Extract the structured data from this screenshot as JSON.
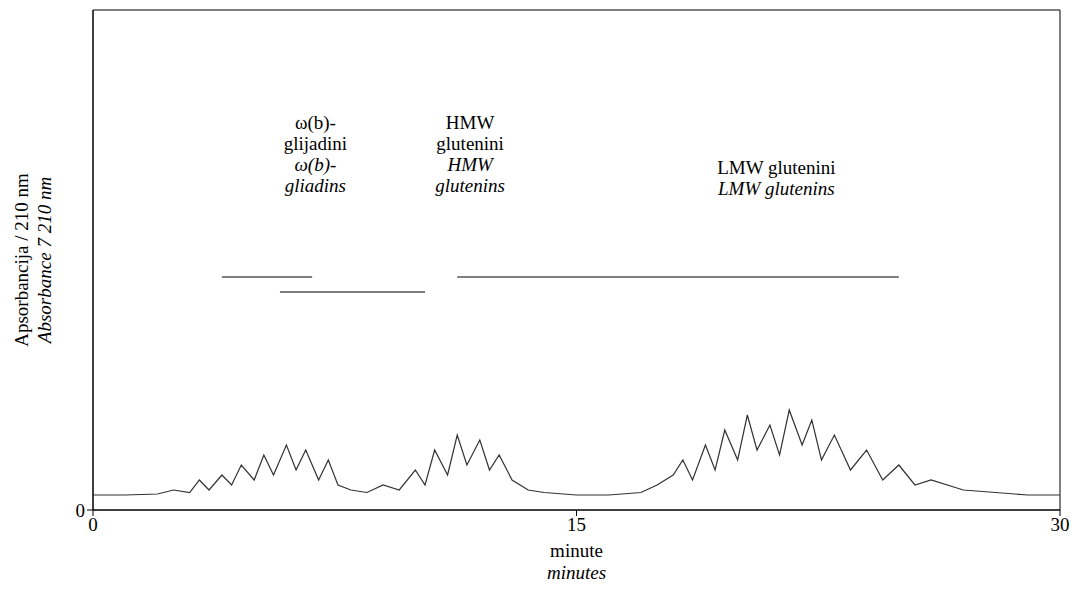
{
  "chart_data": {
    "type": "line",
    "x_label": [
      "minute",
      "minutes"
    ],
    "y_label": [
      "Apsorbancija / 210 nm",
      "Absorbance 7 210 nm"
    ],
    "x": [
      0,
      1,
      2,
      2.5,
      3,
      3.3,
      3.6,
      4,
      4.3,
      4.6,
      5,
      5.3,
      5.6,
      6,
      6.3,
      6.6,
      7,
      7.3,
      7.6,
      8,
      8.5,
      9,
      9.5,
      10,
      10.3,
      10.6,
      11,
      11.3,
      11.6,
      12,
      12.3,
      12.6,
      13,
      13.5,
      14,
      15,
      16,
      17,
      17.5,
      18,
      18.3,
      18.6,
      19,
      19.3,
      19.6,
      20,
      20.3,
      20.6,
      21,
      21.3,
      21.6,
      22,
      22.3,
      22.6,
      23,
      23.5,
      24,
      24.5,
      25,
      25.5,
      26,
      27,
      28,
      29,
      30
    ],
    "values": [
      3,
      3,
      3.2,
      4,
      3.5,
      6,
      4,
      7,
      5,
      9,
      6,
      11,
      7,
      13,
      8,
      12,
      6,
      10,
      5,
      4,
      3.5,
      5,
      4,
      8,
      5,
      12,
      7,
      15,
      9,
      14,
      8,
      11,
      6,
      4,
      3.5,
      3,
      3,
      3.5,
      5,
      7,
      10,
      6,
      13,
      8,
      16,
      10,
      19,
      12,
      17,
      11,
      20,
      13,
      18,
      10,
      15,
      8,
      12,
      6,
      9,
      5,
      6,
      4,
      3.5,
      3,
      3
    ],
    "color": "#333333",
    "line_style": "solid",
    "marker": "none",
    "xlim": [
      0,
      30
    ],
    "xticks": [
      0,
      15,
      30
    ],
    "ylim": [
      0,
      100
    ],
    "yticks": [
      0
    ],
    "grid": false,
    "annotations": [
      {
        "text": [
          "ω(b)-",
          "glijadini"
        ],
        "text_en": [
          "ω(b)-",
          "gliadins"
        ],
        "x": 6.9,
        "y": 79
      },
      {
        "text": [
          "HMW",
          "glutenini"
        ],
        "text_en": [
          "HMW",
          "glutenins"
        ],
        "x": 11.7,
        "y": 79
      },
      {
        "text": [
          "LMW glutenini"
        ],
        "text_en": [
          "LMW glutenins"
        ],
        "x": 21.2,
        "y": 70
      }
    ],
    "regions": [
      {
        "start": 4.0,
        "end": 6.8,
        "level": 46.6
      },
      {
        "start": 5.8,
        "end": 10.3,
        "level": 43.6
      },
      {
        "start": 11.3,
        "end": 25.0,
        "level": 46.6
      }
    ]
  }
}
